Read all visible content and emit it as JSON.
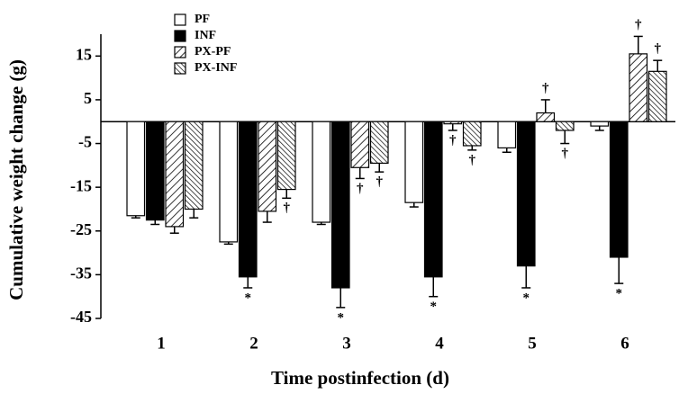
{
  "chart_data": {
    "type": "bar",
    "x_label": "Time postinfection (d)",
    "y_label": "Cumulative weight change (g)",
    "categories": [
      "1",
      "2",
      "3",
      "4",
      "5",
      "6"
    ],
    "ylim": [
      -45,
      20
    ],
    "yticks": [
      15,
      5,
      -5,
      -15,
      -25,
      -35,
      -45
    ],
    "series": [
      {
        "name": "PF",
        "color": "#ffffff",
        "hatch": "none",
        "values": [
          -21.5,
          -27.5,
          -23,
          -18.5,
          -6,
          -1
        ],
        "errors": [
          0.5,
          0.5,
          0.5,
          1,
          1,
          1
        ],
        "annotations": [
          null,
          null,
          null,
          null,
          null,
          null
        ]
      },
      {
        "name": "INF",
        "color": "#000000",
        "hatch": "none",
        "values": [
          -22.5,
          -35.5,
          -38,
          -35.5,
          -33,
          -31
        ],
        "errors": [
          1,
          2.5,
          4.5,
          4.5,
          5,
          6
        ],
        "annotations": [
          null,
          "*",
          "*",
          "*",
          "*",
          "*"
        ]
      },
      {
        "name": "PX-PF",
        "color": "#ffffff",
        "hatch": "forward",
        "values": [
          -24,
          -20.5,
          -10.5,
          -0.5,
          2,
          15.5
        ],
        "errors": [
          1.5,
          2.5,
          2.5,
          1.5,
          3,
          4
        ],
        "annotations": [
          null,
          null,
          "†",
          "†",
          "†",
          "†"
        ]
      },
      {
        "name": "PX-INF",
        "color": "#ffffff",
        "hatch": "back",
        "values": [
          -20,
          -15.5,
          -9.5,
          -5.5,
          -2,
          11.5
        ],
        "errors": [
          2,
          2,
          2,
          1,
          3,
          2.5
        ],
        "annotations": [
          null,
          "†",
          "†",
          "†",
          "†",
          "†"
        ]
      }
    ],
    "legend": "top-left"
  }
}
